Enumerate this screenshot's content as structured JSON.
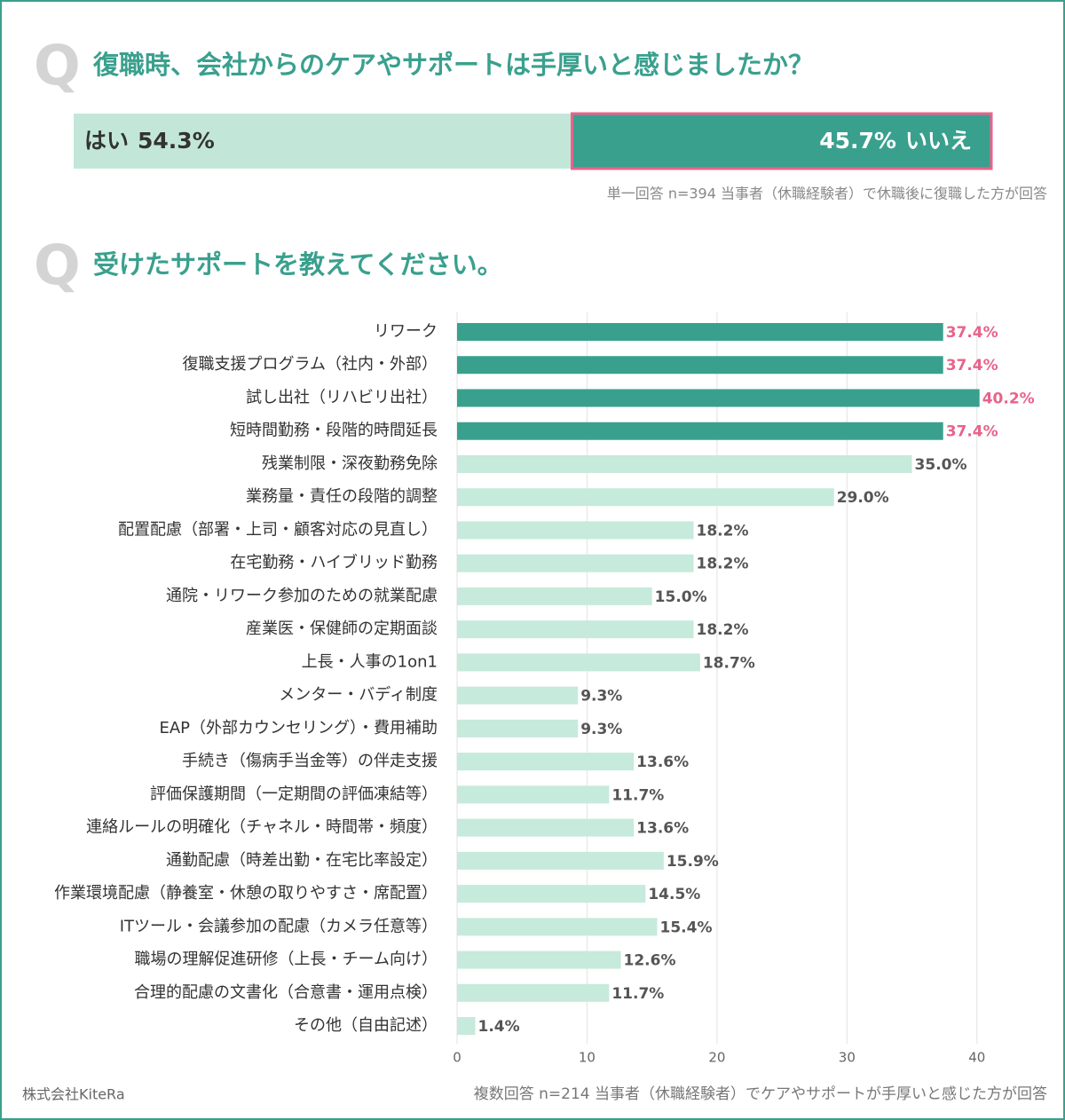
{
  "chart_data": [
    {
      "type": "stacked_bar",
      "marker": "Q",
      "title": "復職時、会社からのケアやサポートは手厚いと感じましたか？",
      "xlim": [
        0,
        100
      ],
      "series": [
        {
          "name": "はい",
          "color": "#c2e7d8",
          "values": [
            54.3
          ],
          "value_labels": [
            "54.3%"
          ]
        },
        {
          "name": "いいえ",
          "color": "#3aa08e",
          "values": [
            45.7
          ],
          "value_labels": [
            "45.7%"
          ]
        }
      ],
      "note": "単一回答 n=394 当事者（休職経験者）で休職後に復職した方が回答"
    },
    {
      "type": "bar",
      "marker": "Q",
      "title": "受けたサポートを教えてください。",
      "categories": [
        "リワーク",
        "復職支援プログラム（社内・外部）",
        "試し出社（リハビリ出社）",
        "短時間勤務・段階的時間延長",
        "残業制限・深夜勤務免除",
        "業務量・責任の段階的調整",
        "配置配慮（部署・上司・顧客対応の見直し）",
        "在宅勤務・ハイブリッド勤務",
        "通院・リワーク参加のための就業配慮",
        "産業医・保健師の定期面談",
        "上長・人事の1on1",
        "メンター・バディ制度",
        "EAP（外部カウンセリング）・費用補助",
        "手続き（傷病手当金等）の伴走支援",
        "評価保護期間（一定期間の評価凍結等）",
        "連絡ルールの明確化（チャネル・時間帯・頻度）",
        "通勤配慮（時差出勤・在宅比率設定）",
        "作業環境配慮（静養室・休憩の取りやすさ・席配置）",
        "ITツール・会議参加の配慮（カメラ任意等）",
        "職場の理解促進研修（上長・チーム向け）",
        "合理的配慮の文書化（合意書・運用点検）",
        "その他（自由記述）"
      ],
      "values": [
        37.4,
        37.4,
        40.2,
        37.4,
        35.0,
        29.0,
        18.2,
        18.2,
        15.0,
        18.2,
        18.7,
        9.3,
        9.3,
        13.6,
        11.7,
        13.6,
        15.9,
        14.5,
        15.4,
        12.6,
        11.7,
        1.4
      ],
      "value_labels": [
        "37.4%",
        "37.4%",
        "40.2%",
        "37.4%",
        "35.0%",
        "29.0%",
        "18.2%",
        "18.2%",
        "15.0%",
        "18.2%",
        "18.7%",
        "9.3%",
        "9.3%",
        "13.6%",
        "11.7%",
        "13.6%",
        "15.9%",
        "14.5%",
        "15.4%",
        "12.6%",
        "11.7%",
        "1.4%"
      ],
      "colors": [
        "#3aa08e",
        "#3aa08e",
        "#3aa08e",
        "#3aa08e",
        "#c6eadb",
        "#c6eadb",
        "#c6eadb",
        "#c6eadb",
        "#c6eadb",
        "#c6eadb",
        "#c6eadb",
        "#c6eadb",
        "#c6eadb",
        "#c6eadb",
        "#c6eadb",
        "#c6eadb",
        "#c6eadb",
        "#c6eadb",
        "#c6eadb",
        "#c6eadb",
        "#c6eadb",
        "#c6eadb"
      ],
      "label_colors": [
        "#e8638a",
        "#e8638a",
        "#e8638a",
        "#e8638a",
        "#555555",
        "#555555",
        "#555555",
        "#555555",
        "#555555",
        "#555555",
        "#555555",
        "#555555",
        "#555555",
        "#555555",
        "#555555",
        "#555555",
        "#555555",
        "#555555",
        "#555555",
        "#555555",
        "#555555",
        "#555555"
      ],
      "xlim": [
        0,
        45
      ],
      "xticks": [
        0,
        10,
        20,
        30,
        40
      ],
      "grid": true,
      "note": "複数回答 n=214 当事者（休職経験者）でケアやサポートが手厚いと感じた方が回答"
    }
  ],
  "footer": "株式会社KiteRa"
}
